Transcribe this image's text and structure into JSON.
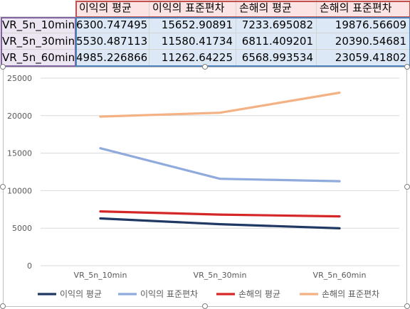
{
  "table": {
    "headers": [
      "이익의 평균",
      "이익의 표준편차",
      "손해의 평균",
      "손해의 표준편차"
    ],
    "rows": [
      {
        "label": "VR_5n_10min",
        "values": [
          "6300.747495",
          "15652.90891",
          "7233.695082",
          "19876.56609"
        ]
      },
      {
        "label": "VR_5n_30min",
        "values": [
          "5530.487113",
          "11580.41734",
          "6811.409201",
          "20390.54681"
        ]
      },
      {
        "label": "VR_5n_60min",
        "values": [
          "4985.226866",
          "11262.64225",
          "6568.993534",
          "23059.41802"
        ]
      }
    ]
  },
  "chart_data": {
    "type": "line",
    "categories": [
      "VR_5n_10min",
      "VR_5n_30min",
      "VR_5n_60min"
    ],
    "ylim": [
      0,
      25000
    ],
    "yticks": [
      0,
      5000,
      10000,
      15000,
      20000,
      25000
    ],
    "grid": true,
    "legend_position": "bottom",
    "series": [
      {
        "name": "이익의 평균",
        "color": "#1f3864",
        "values": [
          6300.747495,
          5530.487113,
          4985.226866
        ]
      },
      {
        "name": "이익의 표준편차",
        "color": "#8faadc",
        "values": [
          15652.90891,
          11580.41734,
          11262.64225
        ]
      },
      {
        "name": "손해의 평균",
        "color": "#d62728",
        "values": [
          7233.695082,
          6811.409201,
          6568.993534
        ]
      },
      {
        "name": "손해의 표준편차",
        "color": "#f4b183",
        "values": [
          19876.56609,
          20390.54681,
          23059.41802
        ]
      }
    ]
  }
}
